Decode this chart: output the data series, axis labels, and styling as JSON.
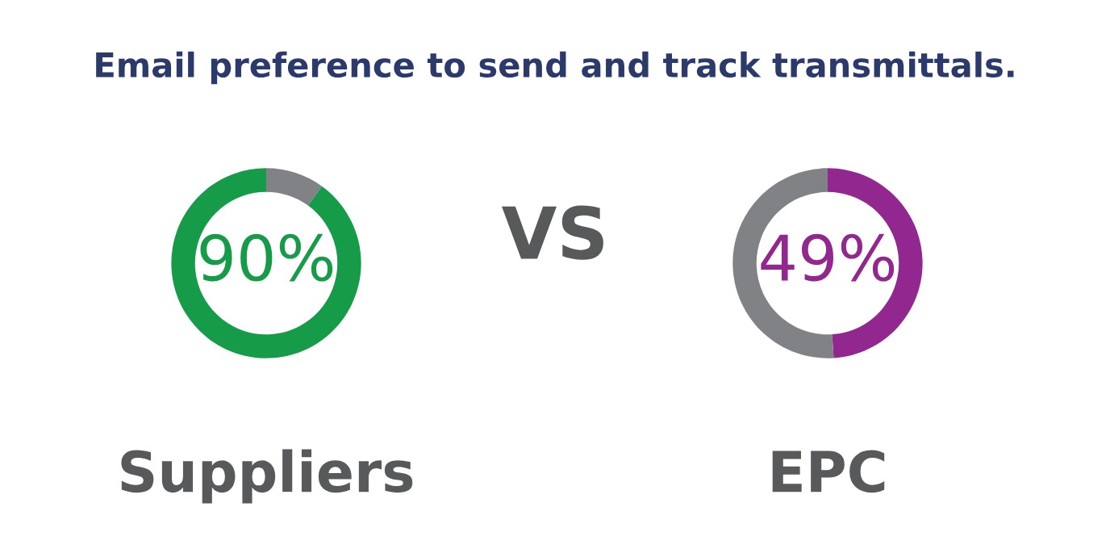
{
  "chart_data": [
    {
      "type": "donut",
      "title": "Email preference to send and track transmittals.",
      "xlabel": "Suppliers",
      "categories": [
        null,
        null
      ],
      "values": [
        10,
        90
      ],
      "colors": [
        "#808285",
        "#169b48"
      ],
      "value_labels": [
        null,
        "90%"
      ],
      "annotations": [
        "VS"
      ]
    },
    {
      "type": "donut",
      "xlabel": "EPC",
      "categories": [
        null,
        null
      ],
      "values": [
        49,
        51
      ],
      "colors": [
        "#92278f",
        "#808285"
      ],
      "value_labels": [
        "49%",
        null
      ]
    }
  ]
}
